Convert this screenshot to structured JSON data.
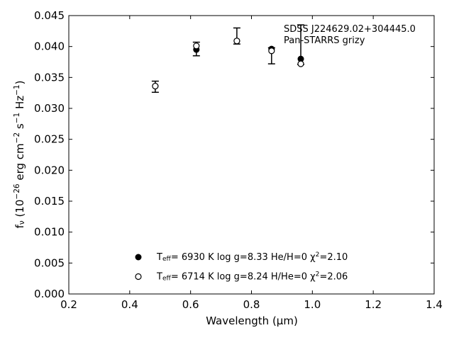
{
  "chart_data": {
    "type": "scatter",
    "x_label": "Wavelength (^{}μm)",
    "y_label": "f_{ν} (10^{−26} erg cm^{−2} s^{−1} Hz^{−1})",
    "annotations": [
      "SDSS J224629.02+304445.0",
      "Pan-STARRS grizy"
    ],
    "x": [
      0.484,
      0.619,
      0.752,
      0.866,
      0.962
    ],
    "series": [
      {
        "marker": "errorbar",
        "color": "#000000",
        "values": [
          0.0335,
          0.0396,
          0.0417,
          0.0385,
          0.0403
        ],
        "errors": [
          0.0009,
          0.0011,
          0.0013,
          0.0013,
          0.0032
        ]
      },
      {
        "name": "T_{eff}=  6930 K  log g=8.33  He/H=0  χ^{2}=2.10",
        "marker": "filled",
        "color": "#000000",
        "values": [
          0.0336,
          0.0395,
          0.0409,
          0.0396,
          0.038
        ]
      },
      {
        "name": "T_{eff}=  6714 K  log g=8.24  H/He=0  χ^{2}=2.06",
        "marker": "open",
        "color": "#000000",
        "values": [
          0.0336,
          0.0401,
          0.0409,
          0.0393,
          0.0372
        ]
      }
    ],
    "xlim": [
      0.2,
      1.4
    ],
    "xticks": [
      0.2,
      0.4,
      0.6,
      0.8,
      {
        "value": 1,
        "label": "1.0"
      },
      1.2,
      1.4
    ],
    "ylim": [
      0,
      0.045
    ],
    "yticks": [
      {
        "value": 0,
        "label": "0.000"
      },
      0.005,
      {
        "value": 0.01,
        "label": "0.010"
      },
      0.015,
      {
        "value": 0.02,
        "label": "0.020"
      },
      0.025,
      {
        "value": 0.03,
        "label": "0.030"
      },
      0.035,
      {
        "value": 0.04,
        "label": "0.040"
      },
      0.045
    ],
    "legend": "lower center",
    "grid": false
  }
}
